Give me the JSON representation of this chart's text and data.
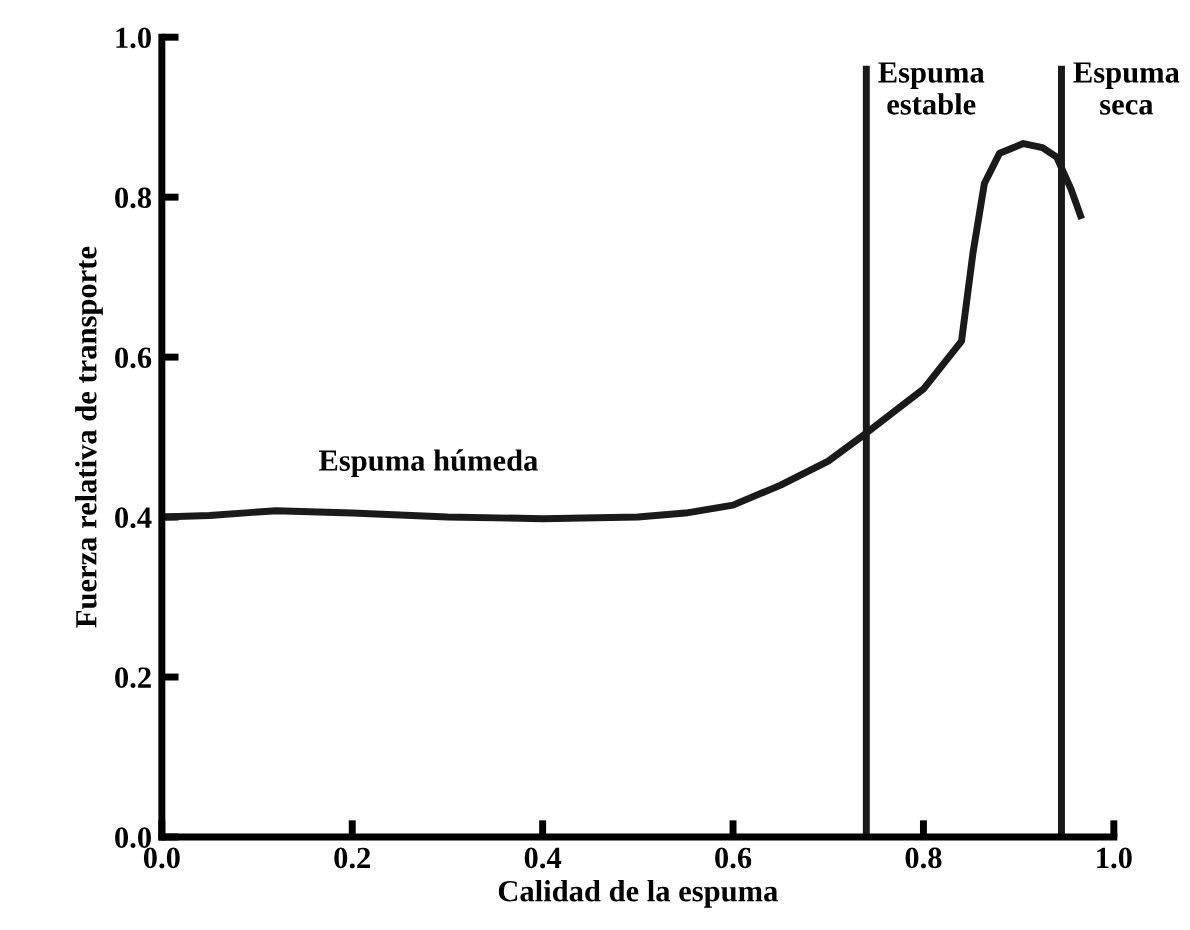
{
  "chart_data": {
    "type": "line",
    "xlabel": "Calidad de la espuma",
    "ylabel": "Fuerza relativa de transporte",
    "x": [
      0.0,
      0.05,
      0.12,
      0.2,
      0.3,
      0.4,
      0.5,
      0.55,
      0.6,
      0.65,
      0.7,
      0.74,
      0.8,
      0.84,
      0.852,
      0.864,
      0.88,
      0.905,
      0.925,
      0.94,
      0.955,
      0.965
    ],
    "series": [
      {
        "color": "#1a1a1a",
        "values": [
          0.4,
          0.402,
          0.408,
          0.405,
          0.4,
          0.398,
          0.4,
          0.405,
          0.415,
          0.44,
          0.47,
          0.505,
          0.56,
          0.62,
          0.73,
          0.817,
          0.855,
          0.867,
          0.862,
          0.85,
          0.81,
          0.777
        ]
      }
    ],
    "xlim": [
      0.0,
      1.0
    ],
    "ylim": [
      0.0,
      1.0
    ],
    "xticks": [
      {
        "value": 0,
        "label": "0.0"
      },
      0.2,
      0.4,
      0.6,
      0.8,
      {
        "value": 1,
        "label": "1.0"
      }
    ],
    "yticks": [
      {
        "value": 0,
        "label": "0.0"
      },
      0.2,
      0.4,
      0.6,
      0.8,
      {
        "value": 1,
        "label": "1.0"
      }
    ],
    "ref_lines": [
      {
        "axis": "x",
        "value": 0.74,
        "label": "Espuma\nestable",
        "color": "#1a1a1a"
      },
      {
        "axis": "x",
        "value": 0.945,
        "label": "Espuma\nseca",
        "color": "#1a1a1a"
      }
    ],
    "annotations": [
      "Espuma húmeda"
    ],
    "grid": false,
    "legend": false,
    "marker": "none",
    "line_style": "solid"
  }
}
